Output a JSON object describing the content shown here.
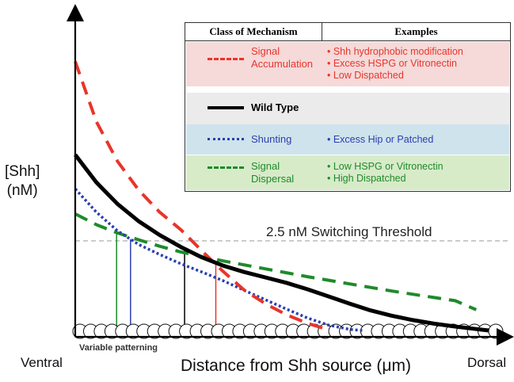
{
  "colors": {
    "signal_accumulation": "#e8352a",
    "wild_type": "#000000",
    "shunting": "#2b3fb0",
    "signal_dispersal": "#1f8a2a",
    "threshold": "#bbbbbb",
    "row_pink": "#f6d9d9",
    "row_gray": "#ebebeb",
    "row_blue": "#cfe3ec",
    "row_green": "#d7ebc9"
  },
  "labels": {
    "ylabel_line1": "[Shh]",
    "ylabel_line2": "(nM)",
    "xlabel": "Distance from Shh source (μm)",
    "ventral": "Ventral",
    "dorsal": "Dorsal",
    "variable_patterning": "Variable patterning",
    "threshold": "2.5 nM Switching Threshold"
  },
  "legend": {
    "header_class": "Class of Mechanism",
    "header_examples": "Examples",
    "rows": [
      {
        "name_line1": "Signal",
        "name_line2": "Accumulation",
        "style": "dashed",
        "examples": [
          "• Shh hydrophobic modification",
          "• Excess HSPG or Vitronectin",
          "• Low Dispatched"
        ]
      },
      {
        "name_line1": "Wild Type",
        "name_line2": "",
        "style": "solid",
        "examples": []
      },
      {
        "name_line1": "Shunting",
        "name_line2": "",
        "style": "dotted",
        "examples": [
          "• Excess Hip or Patched"
        ]
      },
      {
        "name_line1": "Signal",
        "name_line2": "Dispersal",
        "style": "dashed",
        "examples": [
          "• Low HSPG or Vitronectin",
          "• High Dispatched"
        ]
      }
    ]
  },
  "chart_data": {
    "type": "line",
    "title": "",
    "xlabel": "Distance from Shh source (μm)",
    "ylabel": "[Shh] (nM)",
    "x_range": [
      0,
      100
    ],
    "y_range": [
      0,
      8
    ],
    "threshold": {
      "value": 2.5,
      "label": "2.5 nM Switching Threshold"
    },
    "series": [
      {
        "name": "Signal Accumulation",
        "style": "dashed",
        "x": [
          0,
          5,
          10,
          15,
          20,
          25,
          30,
          35,
          40,
          45,
          50,
          55,
          60
        ],
        "y": [
          7.5,
          5.82,
          4.72,
          3.92,
          3.3,
          2.81,
          2.22,
          1.65,
          1.13,
          0.75,
          0.44,
          0.2,
          0.02
        ]
      },
      {
        "name": "Wild Type",
        "style": "solid",
        "x": [
          0,
          5,
          10,
          15,
          20,
          25,
          30,
          35,
          40,
          45,
          50,
          55,
          60,
          65,
          70,
          75,
          80,
          85,
          90,
          95,
          98
        ],
        "y": [
          4.9,
          4.13,
          3.53,
          3.05,
          2.66,
          2.33,
          2.04,
          1.81,
          1.63,
          1.48,
          1.33,
          1.15,
          0.95,
          0.75,
          0.56,
          0.41,
          0.29,
          0.19,
          0.11,
          0.04,
          0.0
        ]
      },
      {
        "name": "Shunting",
        "style": "dotted",
        "x": [
          0,
          5,
          10,
          15,
          20,
          25,
          30,
          35,
          40,
          45,
          50,
          55,
          60,
          65,
          68
        ],
        "y": [
          3.95,
          3.3,
          2.78,
          2.4,
          2.12,
          1.86,
          1.63,
          1.39,
          1.12,
          0.86,
          0.6,
          0.35,
          0.15,
          0.03,
          0.0
        ]
      },
      {
        "name": "Signal Dispersal",
        "style": "dashed",
        "x": [
          0,
          5,
          10,
          15,
          20,
          25,
          30,
          35,
          40,
          45,
          50,
          55,
          60,
          65,
          70,
          75,
          80,
          85,
          90,
          95
        ],
        "y": [
          3.25,
          2.95,
          2.72,
          2.53,
          2.35,
          2.19,
          2.06,
          1.94,
          1.83,
          1.72,
          1.61,
          1.5,
          1.4,
          1.3,
          1.2,
          1.1,
          1.01,
          0.92,
          0.83,
          0.58
        ]
      }
    ],
    "boundary_markers": [
      {
        "series": "Signal Dispersal",
        "x": 9.8
      },
      {
        "series": "Shunting",
        "x": 13.1
      },
      {
        "series": "Wild Type",
        "x": 25.9
      },
      {
        "series": "Signal Accumulation",
        "x": 33.3
      }
    ],
    "cell_count": 40
  }
}
